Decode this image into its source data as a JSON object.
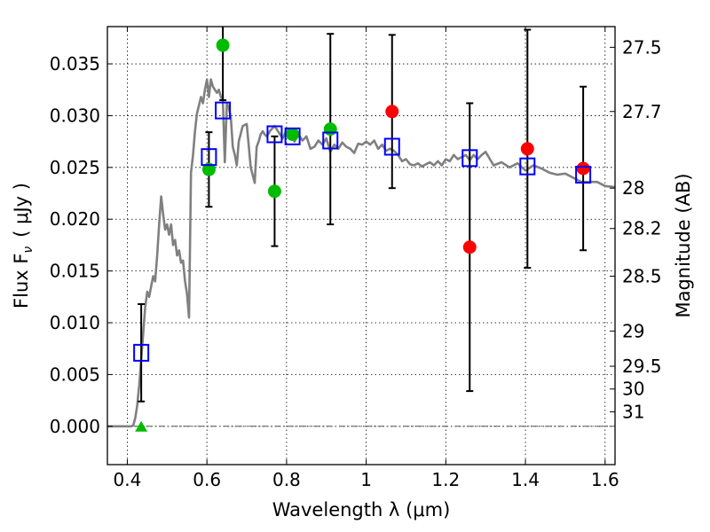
{
  "chart_data": {
    "type": "scatter",
    "xlabel": "Wavelength  λ (μm)",
    "ylabel": "Flux  F",
    "ylabel_sub": "ν",
    "ylabel_units": "( μJy )",
    "y2label": "Magnitude (AB)",
    "xlim": [
      0.35,
      1.625
    ],
    "ylim": [
      -0.0037,
      0.0386
    ],
    "grid": true,
    "x_ticks": [
      0.4,
      0.6,
      0.8,
      1.0,
      1.2,
      1.4,
      1.6
    ],
    "x_tick_labels": [
      "0.4",
      "0.6",
      "0.8",
      "1",
      "1.2",
      "1.4",
      "1.6"
    ],
    "y_ticks": [
      0.0,
      0.005,
      0.01,
      0.015,
      0.02,
      0.025,
      0.03,
      0.035
    ],
    "y_tick_labels": [
      "0.000",
      "0.005",
      "0.010",
      "0.015",
      "0.020",
      "0.025",
      "0.030",
      "0.035"
    ],
    "mag_ticks": [
      {
        "flux": 0.0366,
        "label": "27.5"
      },
      {
        "flux": 0.0304,
        "label": "27.7"
      },
      {
        "flux": 0.023,
        "label": "28"
      },
      {
        "flux": 0.0191,
        "label": "28.2"
      },
      {
        "flux": 0.0145,
        "label": "28.5"
      },
      {
        "flux": 0.0092,
        "label": "29"
      },
      {
        "flux": 0.0058,
        "label": "29.5"
      },
      {
        "flux": 0.0036,
        "label": "30"
      },
      {
        "flux": 0.0014,
        "label": "31"
      }
    ],
    "zero_line": 0.0,
    "model_spectrum": {
      "color": "#808080",
      "x": [
        0.35,
        0.41,
        0.415,
        0.42,
        0.425,
        0.43,
        0.435,
        0.44,
        0.445,
        0.45,
        0.455,
        0.46,
        0.465,
        0.47,
        0.475,
        0.48,
        0.485,
        0.49,
        0.495,
        0.5,
        0.505,
        0.51,
        0.515,
        0.52,
        0.525,
        0.53,
        0.535,
        0.54,
        0.545,
        0.55,
        0.555,
        0.56,
        0.565,
        0.57,
        0.575,
        0.58,
        0.585,
        0.59,
        0.595,
        0.6,
        0.605,
        0.61,
        0.615,
        0.62,
        0.625,
        0.63,
        0.635,
        0.64,
        0.645,
        0.65,
        0.655,
        0.66,
        0.665,
        0.67,
        0.675,
        0.68,
        0.69,
        0.7,
        0.71,
        0.72,
        0.725,
        0.73,
        0.735,
        0.74,
        0.745,
        0.75,
        0.76,
        0.77,
        0.78,
        0.79,
        0.8,
        0.81,
        0.82,
        0.83,
        0.84,
        0.85,
        0.86,
        0.87,
        0.88,
        0.89,
        0.9,
        0.91,
        0.92,
        0.93,
        0.94,
        0.95,
        0.96,
        0.97,
        0.98,
        0.99,
        1.0,
        1.01,
        1.02,
        1.03,
        1.04,
        1.05,
        1.06,
        1.07,
        1.08,
        1.09,
        1.1,
        1.11,
        1.12,
        1.13,
        1.14,
        1.15,
        1.16,
        1.17,
        1.18,
        1.19,
        1.2,
        1.21,
        1.22,
        1.23,
        1.24,
        1.25,
        1.26,
        1.27,
        1.28,
        1.29,
        1.3,
        1.32,
        1.34,
        1.36,
        1.38,
        1.4,
        1.42,
        1.44,
        1.46,
        1.48,
        1.5,
        1.52,
        1.54,
        1.56,
        1.58,
        1.6,
        1.625
      ],
      "y": [
        0.0,
        0.0,
        0.0001,
        0.0008,
        0.002,
        0.004,
        0.0065,
        0.009,
        0.0115,
        0.013,
        0.0125,
        0.0135,
        0.0145,
        0.014,
        0.0165,
        0.0195,
        0.0222,
        0.0205,
        0.019,
        0.0195,
        0.0185,
        0.0195,
        0.0175,
        0.018,
        0.0165,
        0.017,
        0.0158,
        0.016,
        0.014,
        0.0128,
        0.0105,
        0.0245,
        0.0262,
        0.0285,
        0.0302,
        0.031,
        0.0318,
        0.0312,
        0.0325,
        0.0335,
        0.0318,
        0.0335,
        0.0328,
        0.0325,
        0.0322,
        0.0325,
        0.0318,
        0.0315,
        0.0255,
        0.0312,
        0.0308,
        0.0298,
        0.027,
        0.0262,
        0.0252,
        0.0275,
        0.029,
        0.0292,
        0.025,
        0.0235,
        0.027,
        0.0275,
        0.0282,
        0.0285,
        0.0282,
        0.028,
        0.0286,
        0.029,
        0.0284,
        0.0278,
        0.0286,
        0.0282,
        0.0275,
        0.0282,
        0.0276,
        0.028,
        0.0268,
        0.027,
        0.0276,
        0.0272,
        0.0278,
        0.0265,
        0.0272,
        0.0268,
        0.0274,
        0.027,
        0.0268,
        0.0264,
        0.0273,
        0.0272,
        0.0275,
        0.0272,
        0.0276,
        0.0268,
        0.0272,
        0.0266,
        0.0268,
        0.0266,
        0.0262,
        0.0256,
        0.0258,
        0.0253,
        0.0252,
        0.0254,
        0.0251,
        0.0253,
        0.0255,
        0.0252,
        0.0256,
        0.0252,
        0.0258,
        0.0256,
        0.0262,
        0.0258,
        0.026,
        0.0262,
        0.0257,
        0.0262,
        0.0258,
        0.0262,
        0.0265,
        0.0252,
        0.0255,
        0.025,
        0.0254,
        0.0247,
        0.0252,
        0.0249,
        0.0245,
        0.0243,
        0.0244,
        0.024,
        0.0236,
        0.0236,
        0.0236,
        0.0232,
        0.0231
      ]
    },
    "series": [
      {
        "name": "",
        "marker": "square",
        "color": "#0000ff",
        "points": [
          {
            "x": 0.435,
            "y": 0.0071,
            "err": 0.0047
          },
          {
            "x": 0.605,
            "y": 0.026
          },
          {
            "x": 0.64,
            "y": 0.0305
          },
          {
            "x": 0.77,
            "y": 0.0282
          },
          {
            "x": 0.815,
            "y": 0.028
          },
          {
            "x": 0.91,
            "y": 0.0276
          },
          {
            "x": 1.065,
            "y": 0.027
          },
          {
            "x": 1.26,
            "y": 0.0259
          },
          {
            "x": 1.405,
            "y": 0.0251
          },
          {
            "x": 1.545,
            "y": 0.0243
          }
        ]
      },
      {
        "name": "",
        "marker": "circle",
        "color": "#00bb00",
        "points": [
          {
            "x": 0.605,
            "y": 0.0248,
            "err": 0.0036
          },
          {
            "x": 0.64,
            "y": 0.0368,
            "err": 0.0053
          },
          {
            "x": 0.77,
            "y": 0.0227,
            "err": 0.0053
          },
          {
            "x": 0.815,
            "y": 0.0282
          },
          {
            "x": 0.91,
            "y": 0.0287,
            "err": 0.0092
          }
        ]
      },
      {
        "name": "",
        "marker": "triangle",
        "color": "#00bb00",
        "points": [
          {
            "x": 0.435,
            "y": 0.0
          }
        ]
      },
      {
        "name": "",
        "marker": "circle",
        "color": "#ff0000",
        "points": [
          {
            "x": 1.065,
            "y": 0.0304,
            "err": 0.0074
          },
          {
            "x": 1.26,
            "y": 0.0173,
            "err": 0.0139
          },
          {
            "x": 1.405,
            "y": 0.0268,
            "err": 0.0115
          },
          {
            "x": 1.545,
            "y": 0.0249,
            "err": 0.0079
          }
        ]
      }
    ]
  }
}
